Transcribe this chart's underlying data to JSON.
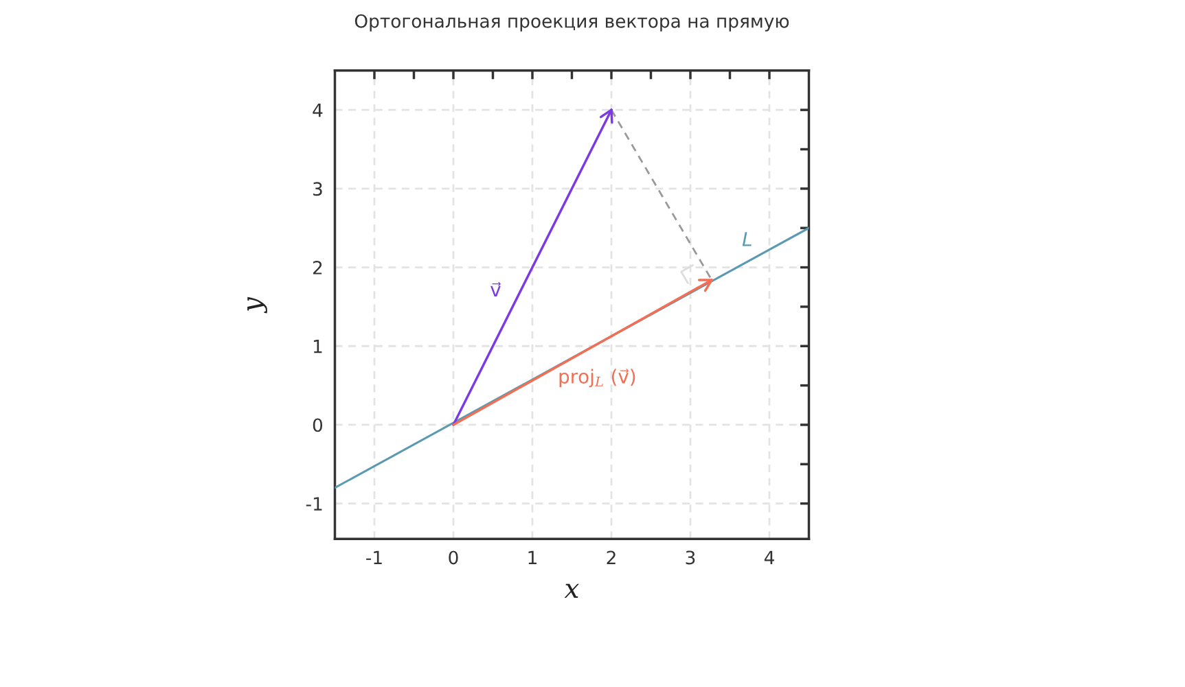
{
  "chart_data": {
    "type": "line",
    "title": "Ортогональная проекция вектора на прямую",
    "xlabel": "x",
    "ylabel": "y",
    "xlim": [
      -1.5,
      4.5
    ],
    "ylim": [
      -1.45,
      4.5
    ],
    "xticks": [
      -1,
      {
        "value": -0.5,
        "label": null
      },
      0,
      {
        "value": 0.5,
        "label": null
      },
      1,
      {
        "value": 1.5,
        "label": null
      },
      2,
      {
        "value": 2.5,
        "label": null
      },
      3,
      {
        "value": 3.5,
        "label": null
      },
      4
    ],
    "yticks": [
      {
        "value": -1,
        "label": "-1"
      },
      {
        "value": -0.5,
        "label": null
      },
      0,
      {
        "value": 0.5,
        "label": null
      },
      1,
      {
        "value": 1.5,
        "label": null
      },
      2,
      {
        "value": 2.5,
        "label": null
      },
      3,
      {
        "value": 3.5,
        "label": null
      },
      4
    ],
    "grid": true,
    "legend": false,
    "series": [
      {
        "name": "L",
        "color": "#5a9ab2",
        "x": [
          -1.5,
          4.5
        ],
        "values": [
          -0.8,
          2.5
        ]
      },
      {
        "color": "#999999",
        "x": [
          2,
          3.27
        ],
        "values": [
          4,
          1.84
        ],
        "line_style": "dashed"
      },
      {
        "name": "v⃗",
        "color": "#7b3ae6",
        "x": [
          0,
          2
        ],
        "values": [
          0,
          4
        ]
      },
      {
        "name": "proj$_{L}$ (v⃗)",
        "color": "#f26e55",
        "x": [
          0,
          3.27
        ],
        "values": [
          0,
          1.84
        ]
      }
    ]
  }
}
